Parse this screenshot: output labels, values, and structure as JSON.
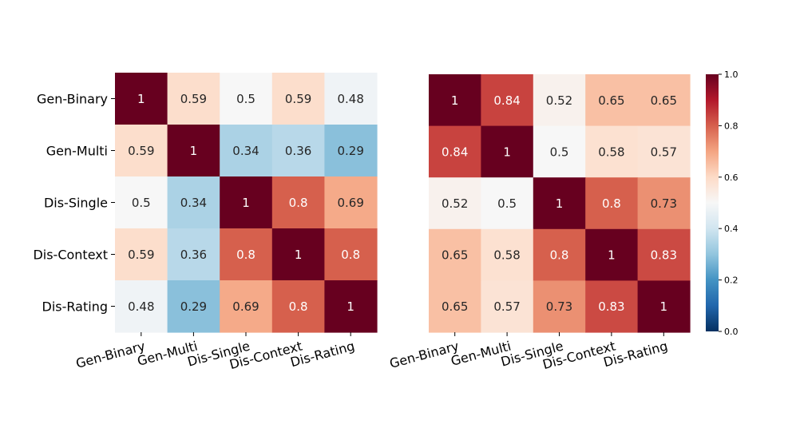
{
  "chart_data": [
    {
      "type": "heatmap",
      "row_labels": [
        "Gen-Binary",
        "Gen-Multi",
        "Dis-Single",
        "Dis-Context",
        "Dis-Rating"
      ],
      "col_labels": [
        "Gen-Binary",
        "Gen-Multi",
        "Dis-Single",
        "Dis-Context",
        "Dis-Rating"
      ],
      "values": [
        [
          1,
          0.59,
          0.5,
          0.59,
          0.48
        ],
        [
          0.59,
          1,
          0.34,
          0.36,
          0.29
        ],
        [
          0.5,
          0.34,
          1,
          0.8,
          0.69
        ],
        [
          0.59,
          0.36,
          0.8,
          1,
          0.8
        ],
        [
          0.48,
          0.29,
          0.69,
          0.8,
          1
        ]
      ],
      "vmin": 0,
      "vmax": 1,
      "colormap": "RdBu_r",
      "annotations": true,
      "show_row_labels": true
    },
    {
      "type": "heatmap",
      "row_labels": [
        "Gen-Binary",
        "Gen-Multi",
        "Dis-Single",
        "Dis-Context",
        "Dis-Rating"
      ],
      "col_labels": [
        "Gen-Binary",
        "Gen-Multi",
        "Dis-Single",
        "Dis-Context",
        "Dis-Rating"
      ],
      "values": [
        [
          1,
          0.84,
          0.52,
          0.65,
          0.65
        ],
        [
          0.84,
          1,
          0.5,
          0.58,
          0.57
        ],
        [
          0.52,
          0.5,
          1,
          0.8,
          0.73
        ],
        [
          0.65,
          0.58,
          0.8,
          1,
          0.83
        ],
        [
          0.65,
          0.57,
          0.73,
          0.83,
          1
        ]
      ],
      "vmin": 0,
      "vmax": 1,
      "colormap": "RdBu_r",
      "annotations": true,
      "show_row_labels": false
    }
  ],
  "colorbar": {
    "ticks": [
      "0.0",
      "0.2",
      "0.4",
      "0.6",
      "0.8",
      "1.0"
    ],
    "tick_values": [
      0,
      0.2,
      0.4,
      0.6,
      0.8,
      1.0
    ]
  }
}
